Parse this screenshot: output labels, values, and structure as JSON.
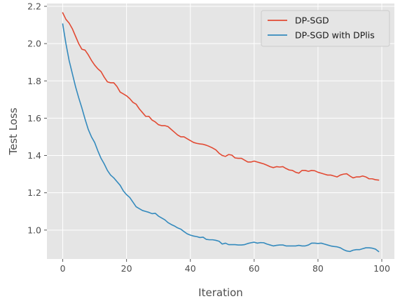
{
  "chart_data": {
    "type": "line",
    "title": "",
    "xlabel": "Iteration",
    "ylabel": "Test Loss",
    "xlim": [
      -4.95,
      103.95
    ],
    "ylim": [
      0.845,
      2.215
    ],
    "xticks": [
      0,
      20,
      40,
      60,
      80,
      100
    ],
    "yticks": [
      1.0,
      1.2,
      1.4,
      1.6,
      1.8,
      2.0,
      2.2
    ],
    "xtick_labels": [
      "0",
      "20",
      "40",
      "60",
      "80",
      "100"
    ],
    "ytick_labels": [
      "1.0",
      "1.2",
      "1.4",
      "1.6",
      "1.8",
      "2.0",
      "2.2"
    ],
    "grid": true,
    "style": "ggplot",
    "legend_position": "upper right",
    "series": [
      {
        "name": "DP-SGD",
        "color": "#E24A33",
        "x": [
          0,
          1,
          2,
          3,
          4,
          5,
          6,
          7,
          8,
          9,
          10,
          11,
          12,
          13,
          14,
          15,
          16,
          17,
          18,
          19,
          20,
          21,
          22,
          23,
          24,
          25,
          26,
          27,
          28,
          29,
          30,
          31,
          32,
          33,
          34,
          35,
          36,
          37,
          38,
          39,
          40,
          41,
          42,
          43,
          44,
          45,
          46,
          47,
          48,
          49,
          50,
          51,
          52,
          53,
          54,
          55,
          56,
          57,
          58,
          59,
          60,
          61,
          62,
          63,
          64,
          65,
          66,
          67,
          68,
          69,
          70,
          71,
          72,
          73,
          74,
          75,
          76,
          77,
          78,
          79,
          80,
          81,
          82,
          83,
          84,
          85,
          86,
          87,
          88,
          89,
          90,
          91,
          92,
          93,
          94,
          95,
          96,
          97,
          98,
          99
        ],
        "values": [
          2.165,
          2.13,
          2.11,
          2.08,
          2.04,
          2.0,
          1.97,
          1.965,
          1.94,
          1.91,
          1.885,
          1.865,
          1.85,
          1.82,
          1.795,
          1.79,
          1.79,
          1.77,
          1.74,
          1.73,
          1.72,
          1.705,
          1.685,
          1.675,
          1.65,
          1.63,
          1.61,
          1.61,
          1.59,
          1.58,
          1.565,
          1.56,
          1.56,
          1.555,
          1.54,
          1.525,
          1.51,
          1.5,
          1.5,
          1.49,
          1.48,
          1.47,
          1.465,
          1.462,
          1.46,
          1.455,
          1.448,
          1.44,
          1.43,
          1.412,
          1.4,
          1.395,
          1.405,
          1.402,
          1.387,
          1.385,
          1.385,
          1.375,
          1.365,
          1.365,
          1.37,
          1.365,
          1.36,
          1.355,
          1.348,
          1.34,
          1.335,
          1.34,
          1.338,
          1.34,
          1.33,
          1.322,
          1.32,
          1.31,
          1.305,
          1.32,
          1.32,
          1.315,
          1.32,
          1.318,
          1.31,
          1.305,
          1.3,
          1.295,
          1.295,
          1.29,
          1.285,
          1.295,
          1.3,
          1.302,
          1.29,
          1.28,
          1.285,
          1.285,
          1.29,
          1.285,
          1.275,
          1.275,
          1.27,
          1.268
        ]
      },
      {
        "name": "DP-SGD with DPlis",
        "color": "#348ABD",
        "x": [
          0,
          1,
          2,
          3,
          4,
          5,
          6,
          7,
          8,
          9,
          10,
          11,
          12,
          13,
          14,
          15,
          16,
          17,
          18,
          19,
          20,
          21,
          22,
          23,
          24,
          25,
          26,
          27,
          28,
          29,
          30,
          31,
          32,
          33,
          34,
          35,
          36,
          37,
          38,
          39,
          40,
          41,
          42,
          43,
          44,
          45,
          46,
          47,
          48,
          49,
          50,
          51,
          52,
          53,
          54,
          55,
          56,
          57,
          58,
          59,
          60,
          61,
          62,
          63,
          64,
          65,
          66,
          67,
          68,
          69,
          70,
          71,
          72,
          73,
          74,
          75,
          76,
          77,
          78,
          79,
          80,
          81,
          82,
          83,
          84,
          85,
          86,
          87,
          88,
          89,
          90,
          91,
          92,
          93,
          94,
          95,
          96,
          97,
          98,
          99
        ],
        "values": [
          2.105,
          2.0,
          1.91,
          1.84,
          1.77,
          1.71,
          1.655,
          1.595,
          1.54,
          1.5,
          1.47,
          1.425,
          1.385,
          1.355,
          1.32,
          1.295,
          1.28,
          1.26,
          1.24,
          1.21,
          1.19,
          1.175,
          1.15,
          1.125,
          1.115,
          1.105,
          1.1,
          1.095,
          1.088,
          1.09,
          1.075,
          1.065,
          1.055,
          1.04,
          1.03,
          1.022,
          1.012,
          1.005,
          0.992,
          0.98,
          0.973,
          0.968,
          0.965,
          0.96,
          0.962,
          0.95,
          0.948,
          0.948,
          0.945,
          0.94,
          0.925,
          0.93,
          0.922,
          0.922,
          0.922,
          0.92,
          0.92,
          0.922,
          0.928,
          0.932,
          0.935,
          0.93,
          0.933,
          0.932,
          0.925,
          0.92,
          0.915,
          0.918,
          0.92,
          0.92,
          0.915,
          0.915,
          0.915,
          0.915,
          0.918,
          0.915,
          0.915,
          0.92,
          0.93,
          0.93,
          0.928,
          0.93,
          0.925,
          0.92,
          0.915,
          0.912,
          0.91,
          0.905,
          0.895,
          0.888,
          0.885,
          0.892,
          0.895,
          0.895,
          0.9,
          0.905,
          0.905,
          0.903,
          0.898,
          0.885
        ]
      }
    ]
  }
}
